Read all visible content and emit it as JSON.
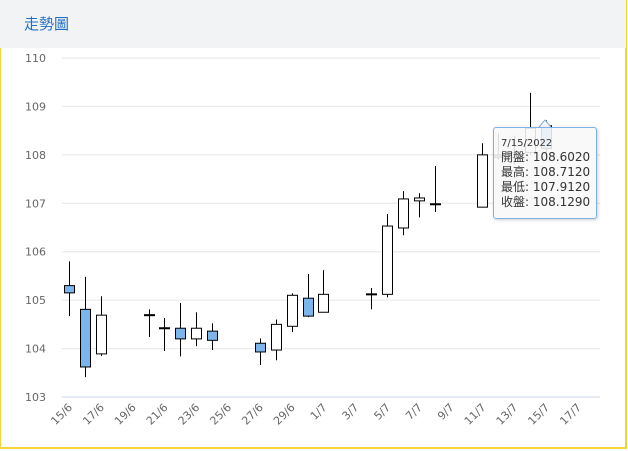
{
  "header": {
    "title": "走勢圖"
  },
  "tooltip": {
    "date": "7/15/2022",
    "rows": [
      {
        "label": "開盤",
        "value": "108.6020"
      },
      {
        "label": "最高",
        "value": "108.7120"
      },
      {
        "label": "最低",
        "value": "107.9120"
      },
      {
        "label": "收盤",
        "value": "108.1290"
      }
    ]
  },
  "chart_data": {
    "type": "candlestick",
    "title": "走勢圖",
    "ylim": [
      103,
      110
    ],
    "yticks": [
      "103",
      "104",
      "105",
      "106",
      "107",
      "108",
      "109",
      "110"
    ],
    "xticks": [
      "15/6",
      "17/6",
      "19/6",
      "21/6",
      "23/6",
      "25/6",
      "27/6",
      "29/6",
      "1/7",
      "3/7",
      "5/7",
      "7/7",
      "9/7",
      "11/7",
      "13/7",
      "15/7",
      "17/7"
    ],
    "up_color": "#ffffff",
    "down_color": "#7cb5ec",
    "candles": [
      {
        "date": "15/6",
        "day": 0,
        "open": 105.3,
        "high": 105.8,
        "low": 104.67,
        "close": 105.15
      },
      {
        "date": "16/6",
        "day": 1,
        "open": 104.81,
        "high": 105.48,
        "low": 103.41,
        "close": 103.62
      },
      {
        "date": "17/6",
        "day": 2,
        "open": 103.89,
        "high": 105.08,
        "low": 103.85,
        "close": 104.69
      },
      {
        "date": "20/6",
        "day": 5,
        "open": 104.69,
        "high": 104.81,
        "low": 104.24,
        "close": 104.7
      },
      {
        "date": "21/6",
        "day": 6,
        "open": 104.43,
        "high": 104.63,
        "low": 103.95,
        "close": 104.42
      },
      {
        "date": "22/6",
        "day": 7,
        "open": 104.42,
        "high": 104.94,
        "low": 103.84,
        "close": 104.2
      },
      {
        "date": "23/6",
        "day": 8,
        "open": 104.2,
        "high": 104.75,
        "low": 104.05,
        "close": 104.42
      },
      {
        "date": "24/6",
        "day": 9,
        "open": 104.36,
        "high": 104.52,
        "low": 103.97,
        "close": 104.17
      },
      {
        "date": "27/6",
        "day": 12,
        "open": 104.11,
        "high": 104.21,
        "low": 103.66,
        "close": 103.93
      },
      {
        "date": "28/6",
        "day": 13,
        "open": 103.97,
        "high": 104.6,
        "low": 103.76,
        "close": 104.5
      },
      {
        "date": "29/6",
        "day": 14,
        "open": 104.46,
        "high": 105.14,
        "low": 104.34,
        "close": 105.1
      },
      {
        "date": "30/6",
        "day": 15,
        "open": 105.04,
        "high": 105.54,
        "low": 104.65,
        "close": 104.67
      },
      {
        "date": "1/7",
        "day": 16,
        "open": 104.75,
        "high": 105.62,
        "low": 104.75,
        "close": 105.12
      },
      {
        "date": "4/7",
        "day": 19,
        "open": 105.12,
        "high": 105.25,
        "low": 104.81,
        "close": 105.13
      },
      {
        "date": "5/7",
        "day": 20,
        "open": 105.12,
        "high": 106.78,
        "low": 105.06,
        "close": 106.53
      },
      {
        "date": "6/7",
        "day": 21,
        "open": 106.49,
        "high": 107.25,
        "low": 106.34,
        "close": 107.09
      },
      {
        "date": "7/7",
        "day": 22,
        "open": 107.05,
        "high": 107.21,
        "low": 106.71,
        "close": 107.11
      },
      {
        "date": "8/7",
        "day": 23,
        "open": 106.99,
        "high": 107.77,
        "low": 106.82,
        "close": 106.98
      },
      {
        "date": "11/7",
        "day": 26,
        "open": 106.92,
        "high": 108.24,
        "low": 106.92,
        "close": 108.0
      },
      {
        "date": "12/7",
        "day": 27,
        "open": 108.0,
        "high": 108.45,
        "low": 107.9,
        "close": 107.95
      },
      {
        "date": "13/7",
        "day": 28,
        "open": 107.95,
        "high": 108.4,
        "low": 107.8,
        "close": 108.05
      },
      {
        "date": "14/7",
        "day": 29,
        "open": 108.05,
        "high": 109.28,
        "low": 108.0,
        "close": 108.55
      },
      {
        "date": "15/7",
        "day": 30,
        "open": 108.602,
        "high": 108.712,
        "low": 107.912,
        "close": 108.129
      }
    ]
  }
}
